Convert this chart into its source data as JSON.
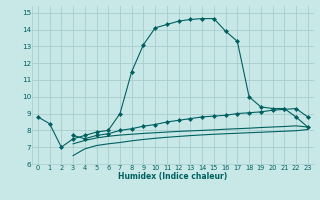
{
  "bg_color": "#c8e8e8",
  "grid_color": "#a8cccc",
  "line_color": "#006060",
  "xlabel": "Humidex (Indice chaleur)",
  "xlim": [
    -0.5,
    23.5
  ],
  "ylim": [
    6,
    15.4
  ],
  "xticks": [
    0,
    1,
    2,
    3,
    4,
    5,
    6,
    7,
    8,
    9,
    10,
    11,
    12,
    13,
    14,
    15,
    16,
    17,
    18,
    19,
    20,
    21,
    22,
    23
  ],
  "yticks": [
    6,
    7,
    8,
    9,
    10,
    11,
    12,
    13,
    14,
    15
  ],
  "line1_x": [
    0,
    1,
    2,
    3,
    4,
    5,
    6,
    7,
    8,
    9,
    10,
    11,
    12,
    13,
    14,
    15,
    16,
    17,
    18,
    19,
    20,
    21,
    22,
    23
  ],
  "line1_y": [
    8.8,
    8.4,
    7.0,
    7.5,
    7.7,
    7.9,
    8.0,
    9.0,
    11.5,
    13.1,
    14.1,
    14.3,
    14.5,
    14.6,
    14.65,
    14.65,
    13.9,
    13.3,
    10.0,
    9.4,
    9.3,
    9.3,
    8.8,
    8.2
  ],
  "line2_x": [
    3,
    4,
    5,
    6,
    7,
    8,
    9,
    10,
    11,
    12,
    13,
    14,
    15,
    16,
    17,
    18,
    19,
    20,
    21,
    22,
    23
  ],
  "line2_y": [
    7.7,
    7.5,
    7.7,
    7.8,
    8.0,
    8.1,
    8.25,
    8.35,
    8.5,
    8.6,
    8.7,
    8.8,
    8.85,
    8.9,
    9.0,
    9.05,
    9.1,
    9.2,
    9.25,
    9.3,
    8.8
  ],
  "line3_x": [
    3,
    4,
    5,
    6,
    7,
    8,
    9,
    10,
    11,
    12,
    13,
    14,
    15,
    16,
    17,
    18,
    19,
    20,
    21,
    22,
    23
  ],
  "line3_y": [
    7.2,
    7.4,
    7.55,
    7.65,
    7.72,
    7.77,
    7.82,
    7.86,
    7.9,
    7.94,
    7.97,
    8.0,
    8.03,
    8.07,
    8.1,
    8.13,
    8.17,
    8.2,
    8.23,
    8.27,
    8.2
  ],
  "line4_x": [
    3,
    4,
    5,
    6,
    7,
    8,
    9,
    10,
    11,
    12,
    13,
    14,
    15,
    16,
    17,
    18,
    19,
    20,
    21,
    22,
    23
  ],
  "line4_y": [
    6.5,
    6.9,
    7.1,
    7.2,
    7.28,
    7.38,
    7.46,
    7.53,
    7.59,
    7.64,
    7.69,
    7.73,
    7.77,
    7.8,
    7.83,
    7.86,
    7.89,
    7.92,
    7.95,
    7.98,
    8.05
  ]
}
